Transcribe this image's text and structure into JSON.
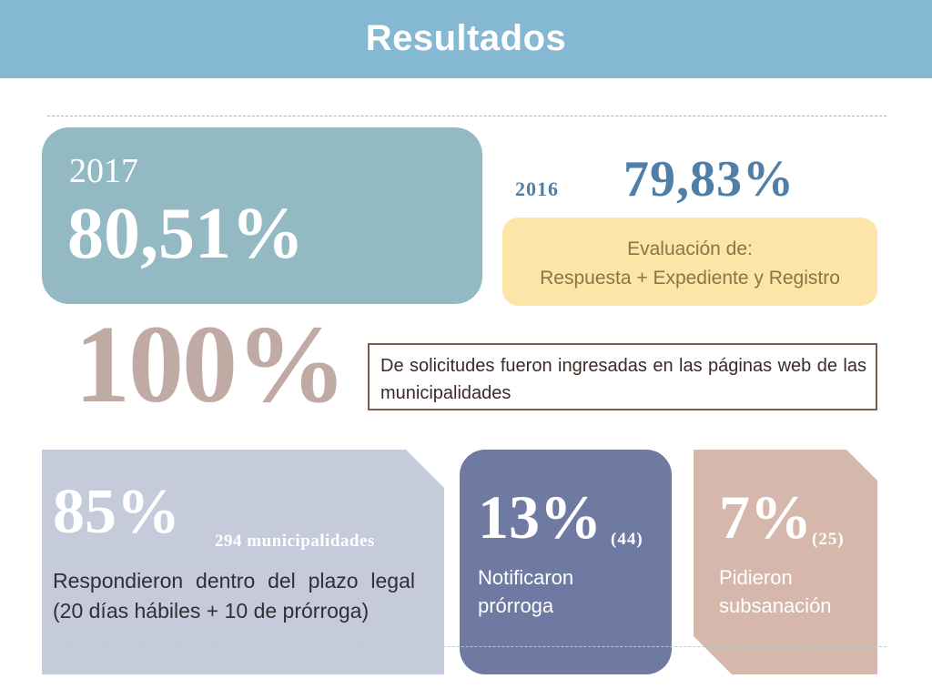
{
  "header": {
    "title": "Resultados"
  },
  "year_2017": {
    "year": "2017",
    "value": "80,51%"
  },
  "year_2016": {
    "year": "2016",
    "value": "79,83%"
  },
  "evaluation": {
    "line1": "Evaluación de:",
    "line2": "Respuesta + Expediente y Registro"
  },
  "web_requests": {
    "value": "100%",
    "text": "De solicitudes fueron ingresadas en las páginas web de las municipalidades"
  },
  "responded": {
    "value": "85%",
    "count": "294 municipalidades",
    "text": "Respondieron dentro del plazo legal (20 días hábiles + 10 de prórroga)"
  },
  "extension": {
    "value": "13%",
    "count": "(44)",
    "text_line1": "Notificaron",
    "text_line2": "prórroga"
  },
  "correction": {
    "value": "7%",
    "count": "(25)",
    "text_line1": "Pidieron",
    "text_line2": "subsanación"
  },
  "colors": {
    "header": "#85b8d2",
    "box_2017": "#93bac3",
    "evaluation_box": "#fbe5a7",
    "value_2016": "#4f7fa7",
    "big_100": "#bfaaa4",
    "box_85": "#c6cbdb",
    "box_13": "#6f7aa2",
    "box_7": "#d6b7ac"
  }
}
